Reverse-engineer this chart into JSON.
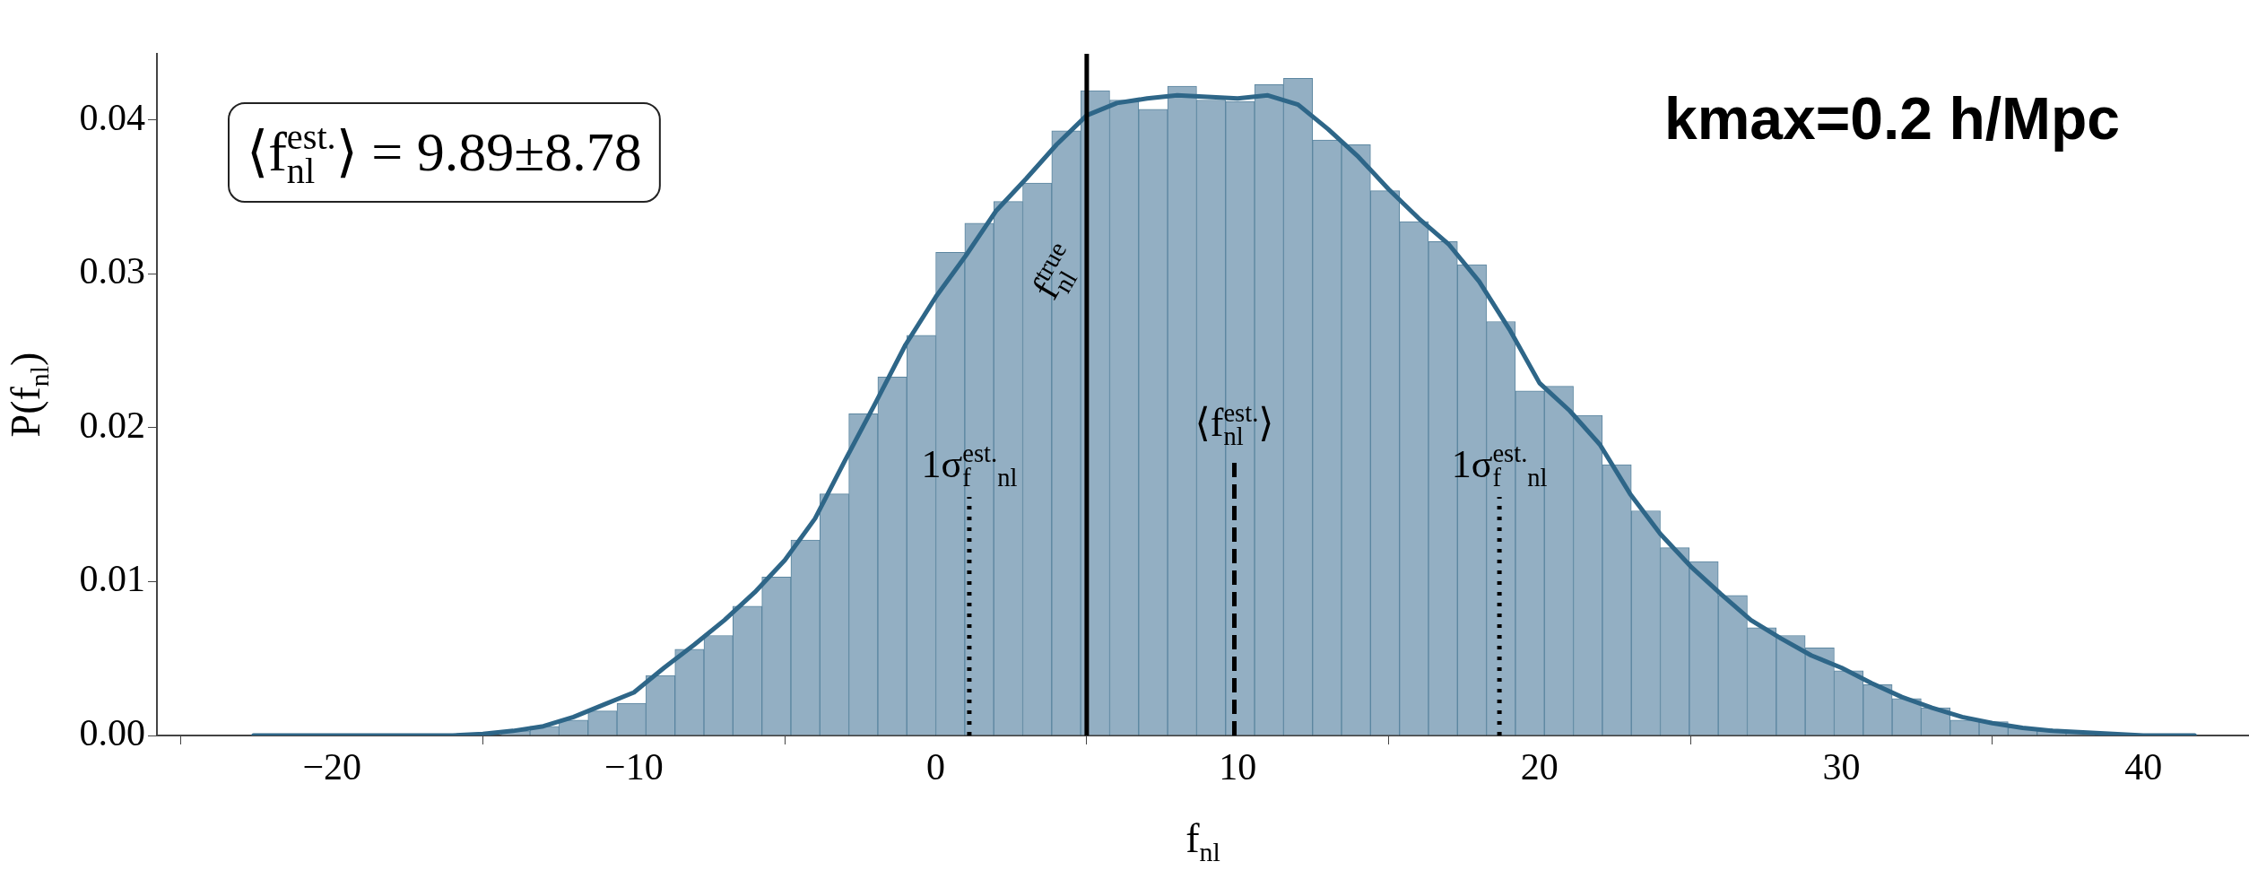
{
  "chart_data": {
    "type": "histogram",
    "title": "kmax=0.2 h/Mpc",
    "xlabel": "f$_{nl}$",
    "ylabel": "P(f$_{nl}$)",
    "bins": [
      -22.08,
      -21.12,
      -20.16,
      -19.2,
      -18.24,
      -17.28,
      -16.32,
      -15.36,
      -14.4,
      -13.44,
      -12.48,
      -11.52,
      -10.56,
      -9.6,
      -8.64,
      -7.68,
      -6.72,
      -5.76,
      -4.8,
      -3.84,
      -2.88,
      -1.92,
      -0.96,
      0,
      0.96,
      1.92,
      2.88,
      3.84,
      4.8,
      5.76,
      6.72,
      7.68,
      8.64,
      9.6,
      10.56,
      11.52,
      12.48,
      13.44,
      14.4,
      15.36,
      16.32,
      17.28,
      18.24,
      19.2,
      20.16,
      21.12,
      22.08,
      23.04,
      24,
      24.96,
      25.92,
      26.88,
      27.84,
      28.8,
      29.76,
      30.72,
      31.68,
      32.64,
      33.6,
      34.56,
      35.52,
      36.48,
      37.44,
      38.4,
      39.36,
      40.32,
      41.28,
      42.24
    ],
    "values": [
      0,
      0,
      0,
      0,
      0,
      0.0001,
      0.0001,
      null,
      0.0003,
      0.0006,
      0.001,
      0.0016,
      0.0021,
      0.0039,
      0.0056,
      0.0065,
      0.0084,
      0.0103,
      0.0127,
      0.0157,
      0.0209,
      0.0233,
      0.026,
      0.0314,
      0.0333,
      0.0347,
      0.0359,
      0.0393,
      0.0419,
      0.0413,
      0.0407,
      0.0422,
      0.0413,
      0.0412,
      0.0423,
      0.0427,
      0.0387,
      0.0384,
      0.0354,
      0.0334,
      0.0321,
      0.0306,
      0.0269,
      0.0224,
      0.0227,
      0.0208,
      0.0176,
      0.0146,
      0.0122,
      0.0113,
      0.0091,
      0.007,
      0.0065,
      0.0057,
      0.0042,
      0.0033,
      0.0024,
      0.0018,
      0.001,
      0.0009,
      0.0005,
      0.0003,
      0.0002,
      null,
      0.0001,
      0.0001,
      0
    ],
    "color": "#93afc3",
    "series": [
      {
        "type": "line",
        "color": "#2e6688",
        "x": [
          -22.6,
          -16,
          -15,
          -14,
          -13,
          -12,
          -11,
          -10,
          -9,
          -8,
          -7,
          -6,
          -5,
          -4,
          -3,
          -2,
          -1,
          0,
          1,
          2,
          3,
          4,
          5,
          6,
          7,
          8,
          9,
          10,
          11,
          12,
          13,
          14,
          15,
          16,
          17,
          18,
          19,
          20,
          21,
          22,
          23,
          24,
          25,
          26,
          27,
          28,
          29,
          30,
          31,
          32,
          33,
          34,
          35,
          36,
          37,
          38,
          39,
          40,
          41.7
        ],
        "values": [
          0,
          0,
          0.0001,
          0.0003,
          0.0006,
          0.0012,
          0.002,
          0.0028,
          0.0044,
          0.0059,
          0.0075,
          0.0093,
          0.0114,
          0.0141,
          0.0179,
          0.0216,
          0.0254,
          0.0285,
          0.0312,
          0.0341,
          0.0362,
          0.0384,
          0.0403,
          0.0411,
          0.0414,
          0.0416,
          0.0415,
          0.0414,
          0.0416,
          0.041,
          0.0394,
          0.0376,
          0.0355,
          0.0336,
          0.0319,
          0.0295,
          0.0264,
          0.0229,
          0.0211,
          0.0189,
          0.0157,
          0.0131,
          0.011,
          0.0092,
          0.0075,
          0.0063,
          0.0052,
          0.0044,
          0.0034,
          0.0025,
          0.0018,
          0.0012,
          0.0008,
          0.0005,
          0.0003,
          0.0002,
          0.0001,
          0,
          0
        ]
      }
    ],
    "xlim": [
      -25.8,
      43.5
    ],
    "ylim": [
      0,
      0.0443
    ],
    "xticks": [
      {
        "value": -20,
        "label": "−20"
      },
      {
        "value": -10,
        "label": "−10"
      },
      0,
      10,
      20,
      30,
      40
    ],
    "yticks": [
      {
        "value": 0,
        "label": "0.00"
      },
      {
        "value": 0.01,
        "label": "0.01"
      },
      {
        "value": 0.02,
        "label": "0.02"
      },
      {
        "value": 0.03,
        "label": "0.03"
      },
      {
        "value": 0.04,
        "label": "0.04"
      }
    ],
    "ref_lines": [
      {
        "axis": "x",
        "value": 5,
        "label": "f$_{nl}$$^{true}$",
        "color": "#000000",
        "line_style": "solid"
      },
      {
        "axis": "x",
        "value": 9.89,
        "label": "⟨f$_{nl}$$^{est.}$⟩",
        "color": "#000000",
        "line_style": "dashed"
      },
      {
        "axis": "x",
        "value": 1.11,
        "label": "1σ$_{f}$$^{est.}$$_{nl}$",
        "color": "#000000",
        "line_style": "dotted"
      },
      {
        "axis": "x",
        "value": 18.67,
        "label": "1σ$_{f}$$^{est.}$$_{nl}$",
        "color": "#000000",
        "line_style": "dotted"
      }
    ],
    "annotations": [
      "⟨f$_{nl}$$^{est.}$⟩ = 9.89±8.78"
    ],
    "grid": false,
    "legend": false
  }
}
